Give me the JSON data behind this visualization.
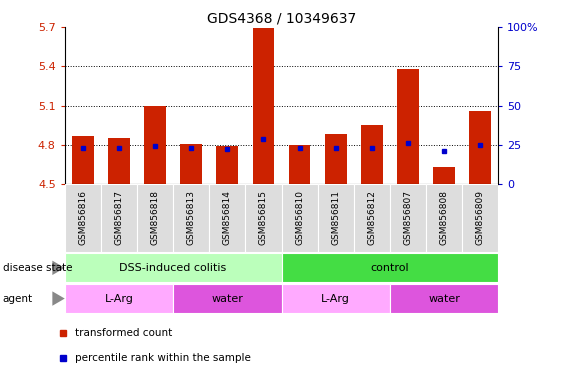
{
  "title": "GDS4368 / 10349637",
  "samples": [
    "GSM856816",
    "GSM856817",
    "GSM856818",
    "GSM856813",
    "GSM856814",
    "GSM856815",
    "GSM856810",
    "GSM856811",
    "GSM856812",
    "GSM856807",
    "GSM856808",
    "GSM856809"
  ],
  "bar_values": [
    4.87,
    4.85,
    5.1,
    4.81,
    4.79,
    5.69,
    4.8,
    4.88,
    4.95,
    5.38,
    4.63,
    5.06
  ],
  "bar_base": 4.5,
  "percentile_values": [
    4.775,
    4.775,
    4.79,
    4.775,
    4.77,
    4.845,
    4.775,
    4.775,
    4.775,
    4.815,
    4.755,
    4.8
  ],
  "ylim_left": [
    4.5,
    5.7
  ],
  "ylim_right": [
    0,
    100
  ],
  "yticks_left": [
    4.5,
    4.8,
    5.1,
    5.4,
    5.7
  ],
  "ytick_labels_left": [
    "4.5",
    "4.8",
    "5.1",
    "5.4",
    "5.7"
  ],
  "yticks_right": [
    0,
    25,
    50,
    75,
    100
  ],
  "ytick_labels_right": [
    "0",
    "25",
    "50",
    "75",
    "100%"
  ],
  "hlines": [
    4.8,
    5.1,
    5.4
  ],
  "bar_color": "#cc2200",
  "percentile_color": "#0000cc",
  "bar_width": 0.6,
  "disease_state_groups": [
    {
      "label": "DSS-induced colitis",
      "start": 0,
      "end": 6,
      "color": "#bbffbb"
    },
    {
      "label": "control",
      "start": 6,
      "end": 12,
      "color": "#44dd44"
    }
  ],
  "agent_groups": [
    {
      "label": "L-Arg",
      "start": 0,
      "end": 3,
      "color": "#ffaaff"
    },
    {
      "label": "water",
      "start": 3,
      "end": 6,
      "color": "#dd55dd"
    },
    {
      "label": "L-Arg",
      "start": 6,
      "end": 9,
      "color": "#ffaaff"
    },
    {
      "label": "water",
      "start": 9,
      "end": 12,
      "color": "#dd55dd"
    }
  ],
  "legend_items": [
    {
      "label": "transformed count",
      "color": "#cc2200"
    },
    {
      "label": "percentile rank within the sample",
      "color": "#0000cc"
    }
  ],
  "tick_color_left": "#cc2200",
  "tick_color_right": "#0000cc",
  "background_color": "#ffffff",
  "plot_bg": "#ffffff",
  "grid_color": "#000000",
  "xtick_bg_color": "#dddddd",
  "label_text_color": "#555555",
  "row_label_left": [
    {
      "text": "disease state",
      "row": "ds"
    },
    {
      "text": "agent",
      "row": "ag"
    }
  ]
}
